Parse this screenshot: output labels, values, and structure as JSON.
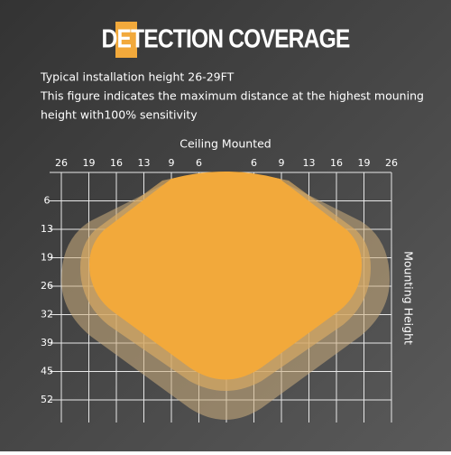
{
  "header": {
    "title": "DETECTION COVERAGE",
    "lines": [
      "Typical installation height 26-29FT",
      "This figure indicates the maximum distance at the highest mouning",
      "height with100% sensitivity"
    ]
  },
  "diagram": {
    "top_label": "Ceiling Mounted",
    "side_label": "Mounting Height",
    "top_ticks": [
      "26",
      "19",
      "16",
      "13",
      "9",
      "6",
      "6",
      "9",
      "13",
      "16",
      "19",
      "26"
    ],
    "left_ticks": [
      "6",
      "13",
      "19",
      "26",
      "32",
      "39",
      "45",
      "52"
    ]
  }
}
